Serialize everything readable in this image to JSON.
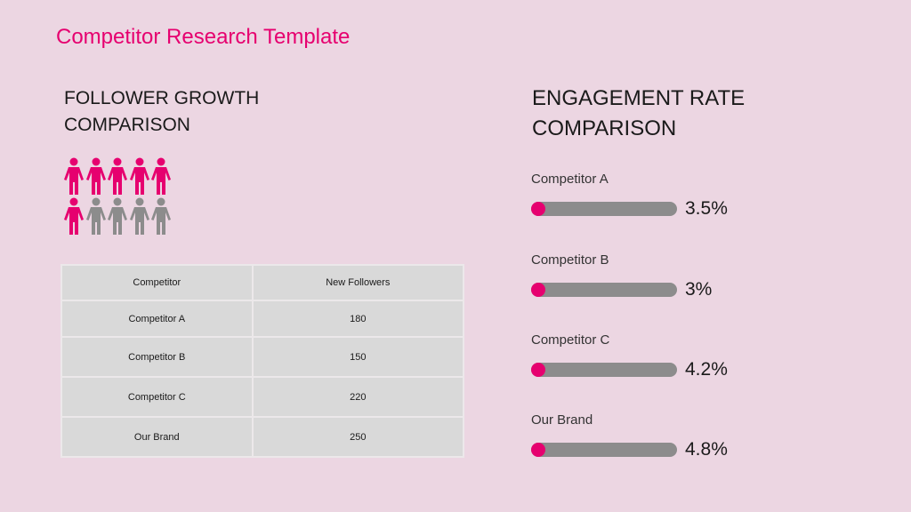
{
  "title": "Competitor Research Template",
  "follower": {
    "heading": "FOLLOWER GROWTH COMPARISON",
    "icons": {
      "total": 10,
      "highlighted": 6,
      "highlight_color": "#e6006f",
      "base_color": "#8c8c8c"
    },
    "table": {
      "headers": [
        "Competitor",
        "New Followers"
      ],
      "rows": [
        [
          "Competitor A",
          "180"
        ],
        [
          "Competitor B",
          "150"
        ],
        [
          "Competitor C",
          "220"
        ],
        [
          "Our Brand",
          "250"
        ]
      ]
    }
  },
  "engagement": {
    "heading": "ENGAGEMENT RATE COMPARISON",
    "items": [
      {
        "label": "Competitor A",
        "value": "3.5%"
      },
      {
        "label": "Competitor B",
        "value": "3%"
      },
      {
        "label": "Competitor C",
        "value": "4.2%"
      },
      {
        "label": "Our Brand",
        "value": "4.8%"
      }
    ]
  }
}
